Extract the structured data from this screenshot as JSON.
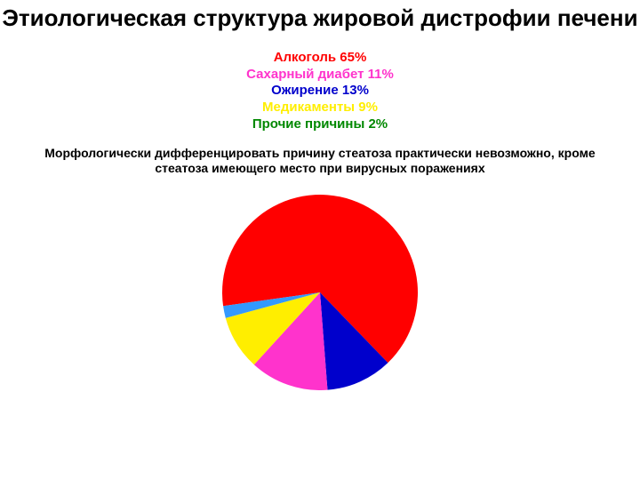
{
  "title": {
    "text": "Этиологическая структура жировой дистрофии печени",
    "fontsize": 26,
    "color": "#000000"
  },
  "legend": {
    "fontsize": 15,
    "items": [
      {
        "label": "Алкоголь 65%",
        "color": "#ff0000"
      },
      {
        "label": "Сахарный диабет 11%",
        "color": "#ff33cc"
      },
      {
        "label": "Ожирение 13%",
        "color": "#0000cc"
      },
      {
        "label": "Медикаменты 9%",
        "color": "#ffee00"
      },
      {
        "label": "Прочие причины 2%",
        "color": "#008800"
      }
    ]
  },
  "subtitle": {
    "text": "Морфологически дифференцировать причину стеатоза практически невозможно, кроме стеатоза имеющего место при вирусных поражениях",
    "fontsize": 14,
    "color": "#000000"
  },
  "pie": {
    "type": "pie",
    "diameter": 220,
    "start_angle_deg": 172,
    "direction": "clockwise",
    "background_color": "#ffffff",
    "slices": [
      {
        "name": "Алкоголь",
        "value": 65,
        "color": "#ff0000"
      },
      {
        "name": "Сахарный диабет",
        "value": 11,
        "color": "#0000cc"
      },
      {
        "name": "Ожирение",
        "value": 13,
        "color": "#ff33cc"
      },
      {
        "name": "Медикаменты",
        "value": 9,
        "color": "#ffee00"
      },
      {
        "name": "Прочие причины",
        "value": 2,
        "color": "#3399ff"
      }
    ]
  }
}
